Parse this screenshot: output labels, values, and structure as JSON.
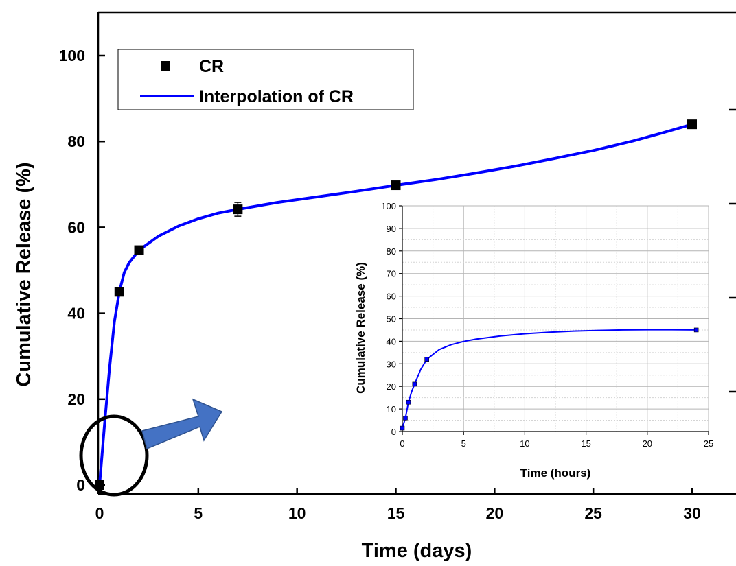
{
  "chart_data": [
    {
      "type": "scatter",
      "name": "main",
      "xlabel": "Time (days)",
      "ylabel": "Cumulative Release (%)",
      "xlim": [
        -1,
        31
      ],
      "ylim": [
        -2,
        110
      ],
      "xticks": [
        0,
        5,
        10,
        15,
        20,
        25,
        30
      ],
      "yticks": [
        0,
        20,
        40,
        60,
        80,
        100
      ],
      "legend": {
        "placement": "top-left",
        "entries": [
          "CR",
          "Interpolation of CR"
        ]
      },
      "series": [
        {
          "name": "CR",
          "marker": "square",
          "color": "#000000",
          "x": [
            0,
            1,
            2,
            7,
            15,
            30
          ],
          "y": [
            0,
            45,
            54.7,
            64.2,
            69.8,
            84
          ],
          "error": [
            0,
            0.6,
            0.7,
            1.6,
            0.9,
            0.8
          ]
        },
        {
          "name": "Interpolation of CR",
          "style": "line",
          "color": "#0000ff",
          "x": [
            0,
            0.25,
            0.5,
            0.75,
            1,
            1.25,
            1.5,
            2,
            3,
            4,
            5,
            6,
            7,
            9,
            11,
            13,
            15,
            17,
            19,
            21,
            23,
            25,
            27,
            28.5,
            30
          ],
          "y": [
            0,
            14,
            27,
            38,
            45,
            49.5,
            51.8,
            54.7,
            58,
            60.3,
            62,
            63.3,
            64.2,
            65.8,
            67.1,
            68.4,
            69.8,
            71.1,
            72.6,
            74.2,
            76,
            77.9,
            80.1,
            82,
            84
          ]
        }
      ]
    },
    {
      "type": "scatter",
      "name": "inset",
      "xlabel": "Time (hours)",
      "ylabel": "Cumulative Release (%)",
      "xlim": [
        0,
        25
      ],
      "ylim": [
        0,
        100
      ],
      "grid": true,
      "xticks": [
        0,
        5,
        10,
        15,
        20,
        25
      ],
      "yticks": [
        0,
        10,
        20,
        30,
        40,
        50,
        60,
        70,
        80,
        90,
        100
      ],
      "series": [
        {
          "name": "CR",
          "marker": "square",
          "color": "#0000ff",
          "x": [
            0,
            0.25,
            0.5,
            1,
            2,
            24
          ],
          "y": [
            1.5,
            6,
            13,
            21,
            32,
            45
          ]
        },
        {
          "name": "Interpolation of CR",
          "style": "line",
          "color": "#0000ff",
          "x": [
            0,
            0.25,
            0.5,
            0.75,
            1,
            1.5,
            2,
            3,
            4,
            5,
            6,
            8,
            10,
            12,
            14,
            16,
            18,
            20,
            22,
            24
          ],
          "y": [
            1.5,
            6,
            13,
            17.5,
            21,
            27.5,
            32,
            36.3,
            38.5,
            39.9,
            40.9,
            42.3,
            43.3,
            44,
            44.5,
            44.8,
            45,
            45.1,
            45.1,
            45
          ]
        }
      ]
    }
  ],
  "colors": {
    "interpolation": "#0000ff",
    "arrow": "#4472c4",
    "markers_main": "#000000"
  }
}
